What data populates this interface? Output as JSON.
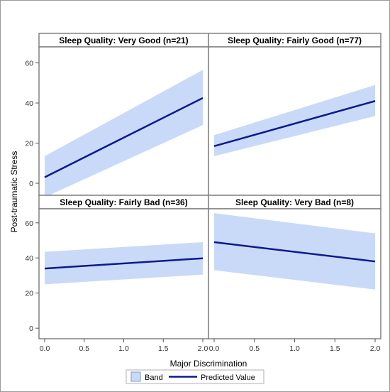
{
  "chart_data": {
    "type": "line",
    "xlabel": "Major Discrimination",
    "ylabel": "Post-traumatic Stress",
    "xlim": [
      0,
      2
    ],
    "ylim": [
      -6,
      68
    ],
    "x_ticks": [
      0.0,
      0.5,
      1.0,
      1.5,
      2.0
    ],
    "x_tick_labels": [
      "0.0",
      "0.5",
      "1.0",
      "1.5",
      "2.0"
    ],
    "y_ticks": [
      0,
      20,
      40,
      60
    ],
    "y_tick_labels": [
      "0",
      "20",
      "40",
      "60"
    ],
    "grid": false,
    "legend": {
      "placement": "bottom",
      "entries": [
        "Band",
        "Predicted Value"
      ]
    },
    "colors": {
      "band": "#c9daf8",
      "band_border": "#7f98c6",
      "line": "#0d1a8c",
      "frame": "#808080"
    },
    "panels": [
      {
        "title": "Sleep Quality: Very Good (n=21)",
        "x": [
          0,
          2
        ],
        "predicted": [
          3,
          42.5
        ],
        "band_lower": [
          -7,
          29
        ],
        "band_upper": [
          13.5,
          56.5
        ]
      },
      {
        "title": "Sleep Quality: Fairly Good (n=77)",
        "x": [
          0,
          2
        ],
        "predicted": [
          18.5,
          41
        ],
        "band_lower": [
          13.5,
          33.5
        ],
        "band_upper": [
          24,
          49
        ]
      },
      {
        "title": "Sleep Quality: Fairly Bad (n=36)",
        "x": [
          0,
          2
        ],
        "predicted": [
          34,
          39.8
        ],
        "band_lower": [
          25,
          30.5
        ],
        "band_upper": [
          43.5,
          49
        ]
      },
      {
        "title": "Sleep Quality: Very Bad (n=8)",
        "x": [
          0,
          2
        ],
        "predicted": [
          49,
          38
        ],
        "band_lower": [
          33,
          22
        ],
        "band_upper": [
          65.5,
          54
        ]
      }
    ]
  }
}
